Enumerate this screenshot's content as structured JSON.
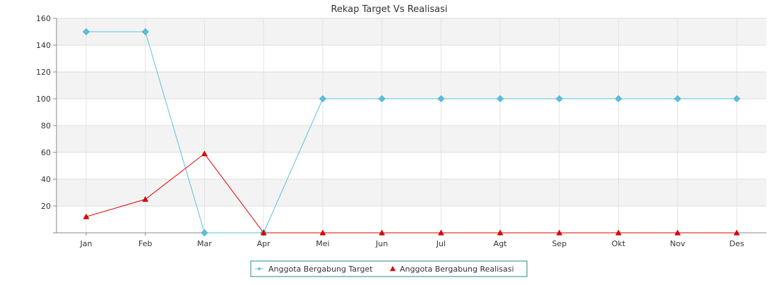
{
  "chart_data": {
    "type": "line",
    "title": "Rekap Target Vs Realisasi",
    "xlabel": "",
    "ylabel": "",
    "categories": [
      "Jan",
      "Feb",
      "Mar",
      "Apr",
      "Mei",
      "Jun",
      "Jul",
      "Agt",
      "Sep",
      "Okt",
      "Nov",
      "Des"
    ],
    "ylim": [
      0,
      160
    ],
    "yticks": [
      20,
      40,
      60,
      80,
      100,
      120,
      140,
      160
    ],
    "grid": true,
    "legend_position": "bottom",
    "series": [
      {
        "name": "Anggota Bergabung Target",
        "marker": "diamond",
        "color": "#5bc0de",
        "values": [
          150,
          150,
          0,
          0,
          100,
          100,
          100,
          100,
          100,
          100,
          100,
          100
        ]
      },
      {
        "name": "Anggota Bergabung Realisasi",
        "marker": "triangle",
        "color": "#e00000",
        "values": [
          12,
          25,
          59,
          0,
          0,
          0,
          0,
          0,
          0,
          0,
          0,
          0
        ]
      }
    ]
  }
}
